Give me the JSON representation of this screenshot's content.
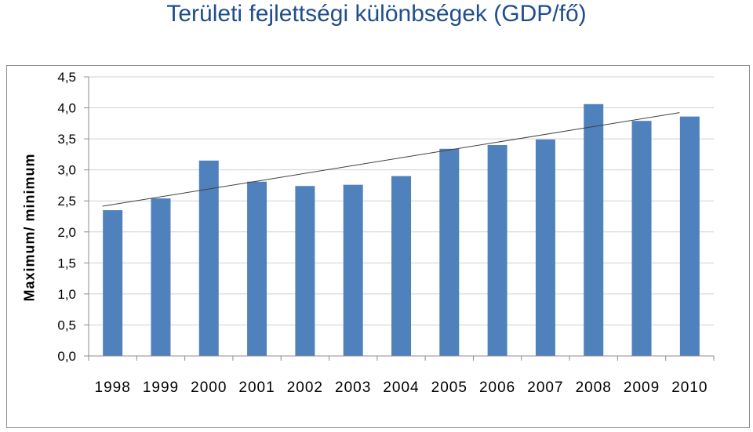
{
  "chart_data": {
    "type": "bar",
    "title": "Területi fejlettségi különbségek (GDP/fő)",
    "ylabel": "Maximum/ minimum",
    "xlabel": "",
    "categories": [
      "1998",
      "1999",
      "2000",
      "2001",
      "2002",
      "2003",
      "2004",
      "2005",
      "2006",
      "2007",
      "2008",
      "2009",
      "2010"
    ],
    "values": [
      2.35,
      2.54,
      3.15,
      2.81,
      2.74,
      2.76,
      2.9,
      3.34,
      3.4,
      3.49,
      4.06,
      3.79,
      3.86
    ],
    "ylim": [
      0,
      4.5
    ],
    "y_ticks": [
      "0,0",
      "0,5",
      "1,0",
      "1,5",
      "2,0",
      "2,5",
      "3,0",
      "3,5",
      "4,0",
      "4,5"
    ],
    "grid": true,
    "trendline": "linear",
    "colors": {
      "bar": "#4f81bd",
      "trendline": "#404040",
      "grid": "#d0d0d0",
      "title": "#1f4e8c"
    }
  }
}
